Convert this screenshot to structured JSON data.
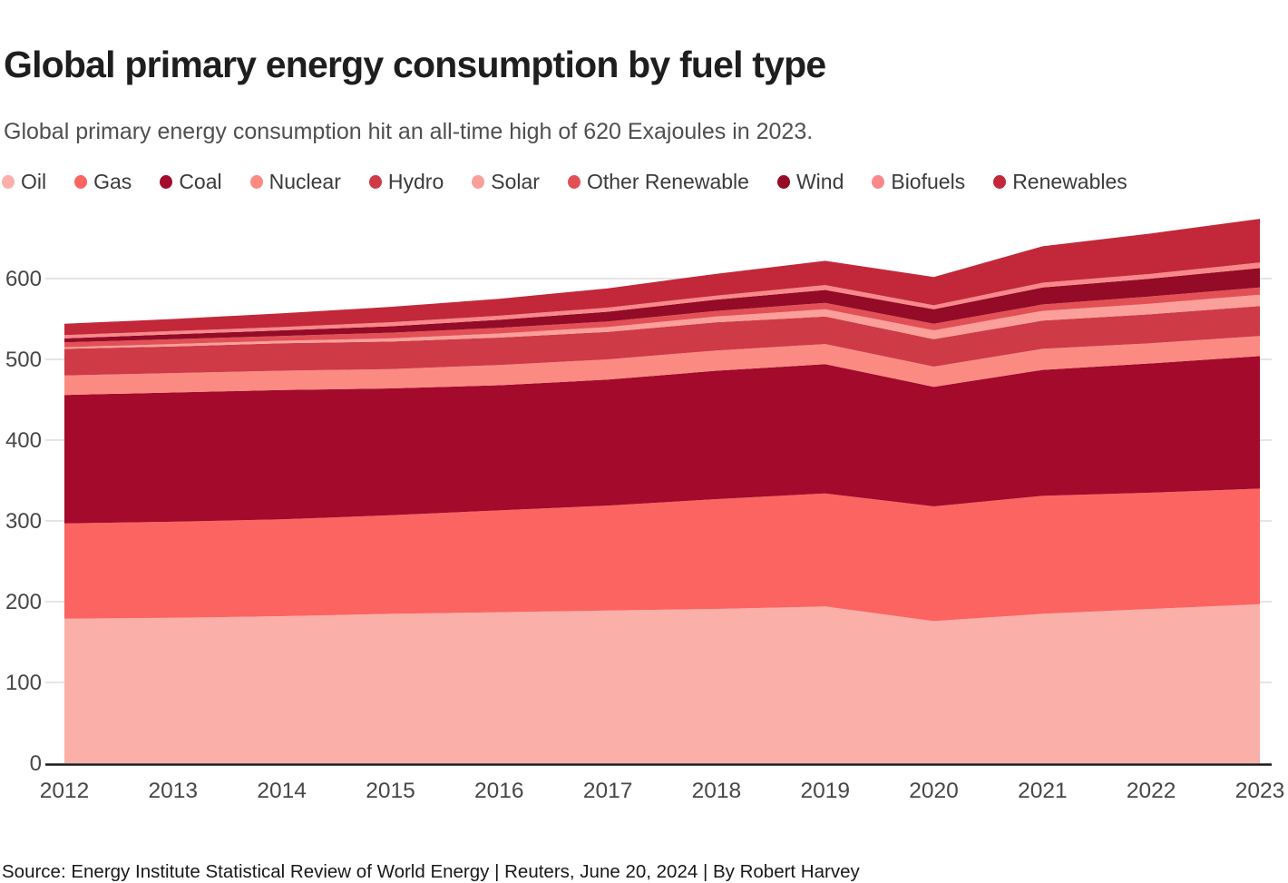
{
  "header": {
    "title": "Global primary energy consumption by fuel type",
    "subtitle": "Global primary energy consumption hit an all-time high of 620 Exajoules in 2023."
  },
  "footer": {
    "source": "Source: Energy Institute Statistical Review of World Energy | Reuters, June 20, 2024 | By Robert Harvey"
  },
  "chart_data": {
    "type": "area",
    "stacked": true,
    "title": "Global primary energy consumption by fuel type",
    "unit": "Exajoules",
    "x": [
      2012,
      2013,
      2014,
      2015,
      2016,
      2017,
      2018,
      2019,
      2020,
      2021,
      2022,
      2023
    ],
    "series": [
      {
        "name": "Oil",
        "color": "#fbafa9",
        "values": [
          179,
          180,
          182,
          185,
          187,
          189,
          191,
          194,
          176,
          185,
          191,
          197
        ]
      },
      {
        "name": "Gas",
        "color": "#fb6461",
        "values": [
          118,
          119,
          120,
          122,
          126,
          130,
          136,
          140,
          142,
          146,
          144,
          143
        ]
      },
      {
        "name": "Coal",
        "color": "#a30a2b",
        "values": [
          159,
          160,
          160,
          157,
          155,
          156,
          159,
          160,
          148,
          156,
          160,
          164
        ]
      },
      {
        "name": "Nuclear",
        "color": "#fb8a82",
        "values": [
          24,
          24,
          24,
          24,
          25,
          25,
          25,
          25,
          25,
          26,
          25,
          25
        ]
      },
      {
        "name": "Hydro",
        "color": "#ce3a46",
        "values": [
          33,
          33,
          34,
          34,
          34,
          34,
          35,
          34,
          34,
          35,
          36,
          37
        ]
      },
      {
        "name": "Solar",
        "color": "#fa9f99",
        "values": [
          2,
          3,
          3,
          4,
          5,
          6,
          7,
          9,
          11,
          12,
          13,
          14
        ]
      },
      {
        "name": "Other Renewable",
        "color": "#e25055",
        "values": [
          6,
          6,
          6,
          7,
          7,
          7,
          7,
          8,
          8,
          8,
          9,
          9
        ]
      },
      {
        "name": "Wind",
        "color": "#930b26",
        "values": [
          5,
          6,
          7,
          8,
          10,
          12,
          14,
          16,
          18,
          21,
          22,
          24
        ]
      },
      {
        "name": "Biofuels",
        "color": "#f8888a",
        "values": [
          4,
          4,
          4,
          5,
          5,
          5,
          5,
          6,
          5,
          6,
          6,
          7
        ]
      },
      {
        "name": "Renewables",
        "color": "#c22839",
        "values": [
          14,
          15,
          17,
          19,
          21,
          24,
          27,
          30,
          35,
          45,
          50,
          54
        ]
      }
    ],
    "yticks": [
      0,
      100,
      200,
      300,
      400,
      500,
      600
    ],
    "ylim": [
      0,
      600
    ],
    "xlabel": "",
    "ylabel": "",
    "grid": true,
    "legend_position": "top",
    "grid_color": "#dcdcdc",
    "baseline_color": "#1a1a1a",
    "tick_label_color": "#474747"
  }
}
